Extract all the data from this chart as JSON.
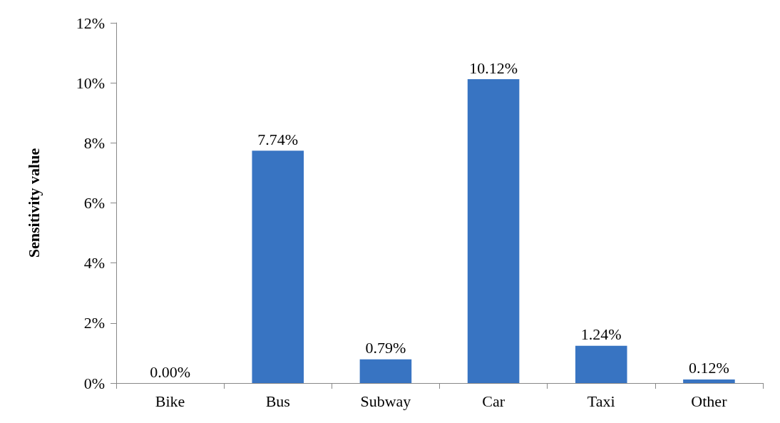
{
  "chart_data": {
    "type": "bar",
    "ylabel": "Sensitivity value",
    "categories": [
      "Bike",
      "Bus",
      "Subway",
      "Car",
      "Taxi",
      "Other"
    ],
    "values": [
      0,
      7.74,
      0.79,
      10.12,
      1.24,
      0.12
    ],
    "value_labels": [
      "0.00%",
      "7.74%",
      "0.79%",
      "10.12%",
      "1.24%",
      "0.12%"
    ],
    "color": "#3874c2",
    "ylim": [
      0,
      12
    ],
    "yticks": [
      {
        "value": 0,
        "label": "0%"
      },
      {
        "value": 2,
        "label": "2%"
      },
      {
        "value": 4,
        "label": "4%"
      },
      {
        "value": 6,
        "label": "6%"
      },
      {
        "value": 8,
        "label": "8%"
      },
      {
        "value": 10,
        "label": "10%"
      },
      {
        "value": 12,
        "label": "12%"
      }
    ],
    "grid": false
  }
}
